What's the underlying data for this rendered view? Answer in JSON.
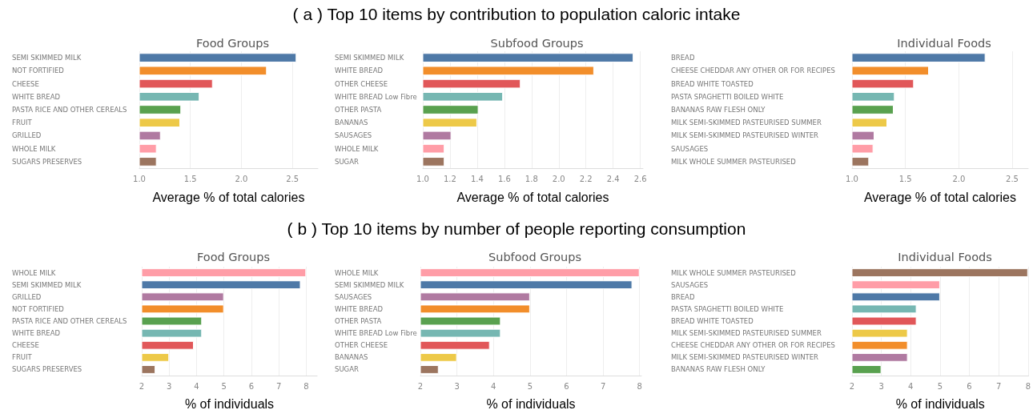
{
  "chart_data": [
    {
      "type": "bar",
      "orientation": "horizontal",
      "title": "Food Groups",
      "xlabel": "Average % of total calories",
      "annotations": [
        "( a ) Top 10 items by contribution to population caloric intake"
      ],
      "categories": [
        "SEMI SKIMMED MILK",
        "NOT FORTIFIED",
        "CHEESE",
        "WHITE BREAD",
        "PASTA RICE AND OTHER CEREALS",
        "FRUIT",
        "GRILLED",
        "WHOLE MILK",
        "SUGARS PRESERVES"
      ],
      "values": [
        2.54,
        2.25,
        1.72,
        1.59,
        1.41,
        1.4,
        1.21,
        1.17,
        1.17
      ],
      "colors": [
        "#4e79a7",
        "#f28e2b",
        "#e15759",
        "#76b7b2",
        "#59a14f",
        "#edc948",
        "#b07aa1",
        "#ff9da7",
        "#9c755f"
      ],
      "xlim": [
        1,
        2.75
      ],
      "xticks": [
        {
          "value": 1,
          "label": "1.0"
        },
        {
          "value": 1.5,
          "label": "1.5"
        },
        {
          "value": 2,
          "label": "2.0"
        },
        {
          "value": 2.5,
          "label": "2.5"
        }
      ],
      "grid": "x"
    },
    {
      "type": "bar",
      "orientation": "horizontal",
      "title": "Subfood Groups",
      "xlabel": "Average % of total calories",
      "categories": [
        "SEMI SKIMMED MILK",
        "WHITE BREAD",
        "OTHER CHEESE",
        "WHITE BREAD Low Fibre",
        "OTHER PASTA",
        "BANANAS",
        "SAUSAGES",
        "WHOLE MILK",
        "SUGAR"
      ],
      "values": [
        2.55,
        2.26,
        1.72,
        1.59,
        1.41,
        1.4,
        1.21,
        1.16,
        1.16
      ],
      "colors": [
        "#4e79a7",
        "#f28e2b",
        "#e15759",
        "#76b7b2",
        "#59a14f",
        "#edc948",
        "#b07aa1",
        "#ff9da7",
        "#9c755f"
      ],
      "xlim": [
        1,
        2.62
      ],
      "xticks": [
        {
          "value": 1,
          "label": "1.0"
        },
        {
          "value": 1.2,
          "label": "1.2"
        },
        {
          "value": 1.4,
          "label": "1.4"
        },
        {
          "value": 1.6,
          "label": "1.6"
        },
        {
          "value": 1.8,
          "label": "1.8"
        },
        {
          "value": 2,
          "label": "2.0"
        },
        {
          "value": 2.2,
          "label": "2.2"
        },
        {
          "value": 2.4,
          "label": "2.4"
        },
        {
          "value": 2.6,
          "label": "2.6"
        }
      ],
      "grid": "x"
    },
    {
      "type": "bar",
      "orientation": "horizontal",
      "title": "Individual Foods",
      "xlabel": "Average % of total calories",
      "categories": [
        "BREAD",
        "CHEESE CHEDDAR ANY OTHER OR FOR RECIPES",
        "BREAD WHITE TOASTED",
        "PASTA SPAGHETTI BOILED WHITE",
        "BANANAS RAW FLESH ONLY",
        "MILK SEMI-SKIMMED PASTEURISED SUMMER",
        "MILK SEMI-SKIMMED PASTEURISED WINTER",
        "SAUSAGES",
        "MILK WHOLE SUMMER PASTEURISED"
      ],
      "values": [
        2.25,
        1.72,
        1.58,
        1.4,
        1.39,
        1.33,
        1.21,
        1.2,
        1.16
      ],
      "colors": [
        "#4e79a7",
        "#f28e2b",
        "#e15759",
        "#76b7b2",
        "#59a14f",
        "#edc948",
        "#b07aa1",
        "#ff9da7",
        "#9c755f"
      ],
      "xlim": [
        1,
        2.65
      ],
      "xticks": [
        {
          "value": 1,
          "label": "1.0"
        },
        {
          "value": 1.5,
          "label": "1.5"
        },
        {
          "value": 2,
          "label": "2.0"
        },
        {
          "value": 2.5,
          "label": "2.5"
        }
      ],
      "grid": "x"
    },
    {
      "type": "bar",
      "orientation": "horizontal",
      "title": "Food Groups",
      "xlabel": "% of individuals",
      "annotations": [
        "( b ) Top 10 items by number of people reporting consumption"
      ],
      "categories": [
        "WHOLE MILK",
        "SEMI SKIMMED MILK",
        "GRILLED",
        "NOT FORTIFIED",
        "PASTA RICE AND OTHER CEREALS",
        "WHITE BREAD",
        "CHEESE",
        "FRUIT",
        "SUGARS PRESERVES"
      ],
      "values": [
        8,
        7.8,
        5,
        5,
        4.2,
        4.2,
        3.9,
        3,
        2.5
      ],
      "colors": [
        "#ff9da7",
        "#4e79a7",
        "#b07aa1",
        "#f28e2b",
        "#59a14f",
        "#76b7b2",
        "#e15759",
        "#edc948",
        "#9c755f"
      ],
      "xlim": [
        2,
        8.4
      ],
      "xticks": [
        2,
        3,
        4,
        5,
        6,
        7,
        8
      ],
      "grid": "x"
    },
    {
      "type": "bar",
      "orientation": "horizontal",
      "title": "Subfood Groups",
      "xlabel": "% of individuals",
      "categories": [
        "WHOLE MILK",
        "SEMI SKIMMED MILK",
        "SAUSAGES",
        "WHITE BREAD",
        "OTHER PASTA",
        "WHITE BREAD Low Fibre",
        "OTHER CHEESE",
        "BANANAS",
        "SUGAR"
      ],
      "values": [
        8,
        7.8,
        5,
        5,
        4.2,
        4.2,
        3.9,
        3,
        2.5
      ],
      "colors": [
        "#ff9da7",
        "#4e79a7",
        "#b07aa1",
        "#f28e2b",
        "#59a14f",
        "#76b7b2",
        "#e15759",
        "#edc948",
        "#9c755f"
      ],
      "xlim": [
        2,
        8.05
      ],
      "xticks": [
        2,
        3,
        4,
        5,
        6,
        7,
        8
      ],
      "grid": "x"
    },
    {
      "type": "bar",
      "orientation": "horizontal",
      "title": "Individual Foods",
      "xlabel": "% of individuals",
      "categories": [
        "MILK WHOLE SUMMER PASTEURISED",
        "SAUSAGES",
        "BREAD",
        "PASTA SPAGHETTI BOILED WHITE",
        "BREAD WHITE TOASTED",
        "MILK SEMI-SKIMMED PASTEURISED SUMMER",
        "CHEESE CHEDDAR ANY OTHER OR FOR RECIPES",
        "MILK SEMI-SKIMMED PASTEURISED WINTER",
        "BANANAS RAW FLESH ONLY"
      ],
      "values": [
        8,
        5,
        5,
        4.2,
        4.2,
        3.9,
        3.9,
        3.9,
        3
      ],
      "colors": [
        "#9c755f",
        "#ff9da7",
        "#4e79a7",
        "#76b7b2",
        "#e15759",
        "#edc948",
        "#f28e2b",
        "#b07aa1",
        "#59a14f"
      ],
      "xlim": [
        2,
        8.02
      ],
      "xticks": [
        2,
        3,
        4,
        5,
        6,
        7,
        8
      ],
      "grid": "x"
    }
  ]
}
